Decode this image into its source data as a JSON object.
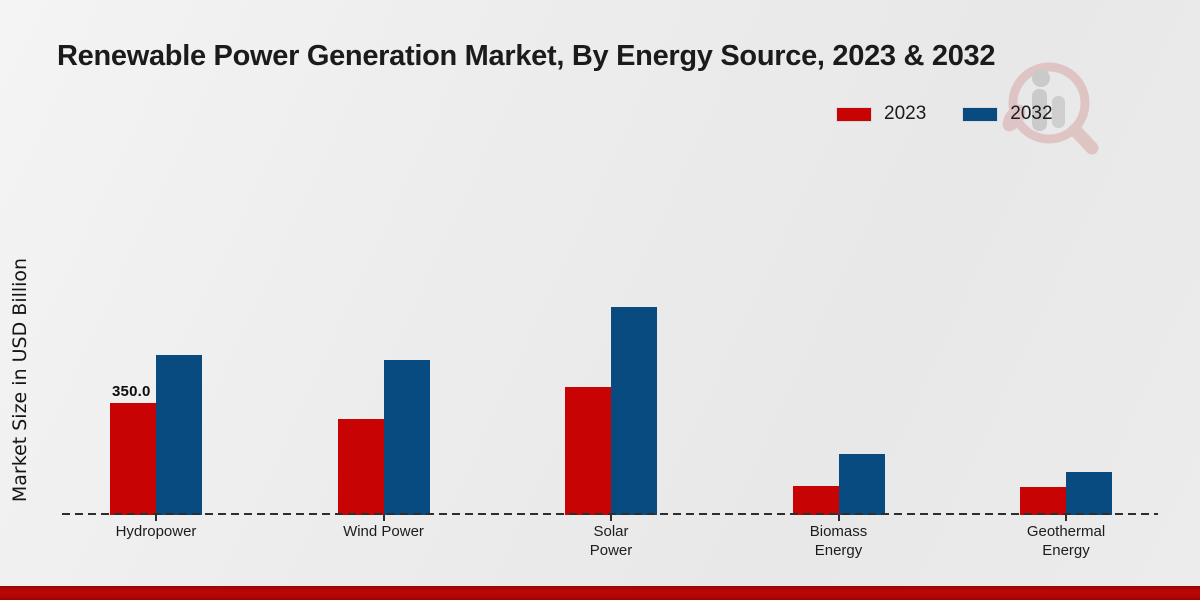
{
  "chart_data": {
    "type": "bar",
    "title": "Renewable Power Generation Market, By Energy Source, 2023 & 2032",
    "ylabel": "Market Size in USD Billion",
    "xlabel": "",
    "categories": [
      "Hydropower",
      "Wind Power",
      "Solar\nPower",
      "Biomass\nEnergy",
      "Geothermal\nEnergy"
    ],
    "series": [
      {
        "name": "2023",
        "color": "#c80303",
        "values": [
          350,
          300,
          400,
          90,
          88
        ]
      },
      {
        "name": "2032",
        "color": "#074b80",
        "values": [
          500,
          485,
          650,
          190,
          135
        ]
      }
    ],
    "data_label": {
      "category_index": 0,
      "series_index": 0,
      "text": "350.0"
    },
    "ylim": [
      0,
      700
    ],
    "grid": false,
    "y_axis_ticks_visible": false,
    "baseline_style": "dashed",
    "legend_position": "top-right"
  },
  "footer": {
    "accent_color": "#b30505"
  },
  "watermark": {
    "name": "market-research-future-logo",
    "ring_color": "#c98585",
    "figure_color": "#9a9a9a"
  }
}
